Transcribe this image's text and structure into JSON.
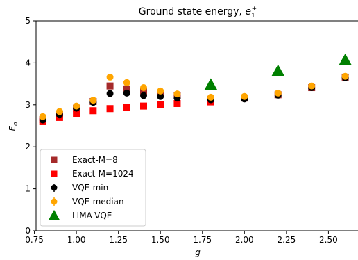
{
  "chart_data": {
    "type": "scatter",
    "title_prefix": "Ground state energy, ",
    "title_symbol": "e",
    "title_sub": "1",
    "title_sup": "+",
    "xlabel": "g",
    "ylabel_symbol": "E",
    "ylabel_sub": "o",
    "xlim": [
      0.76,
      2.68
    ],
    "ylim": [
      0,
      5
    ],
    "xticks": [
      "0.75",
      "1.00",
      "1.25",
      "1.50",
      "1.75",
      "2.00",
      "2.25",
      "2.50"
    ],
    "xtick_values": [
      0.75,
      1.0,
      1.25,
      1.5,
      1.75,
      2.0,
      2.25,
      2.5
    ],
    "yticks": [
      "0",
      "1",
      "2",
      "3",
      "4",
      "5"
    ],
    "ytick_values": [
      0,
      1,
      2,
      3,
      4,
      5
    ],
    "grid": false,
    "legend_position": "lower-left",
    "series": [
      {
        "name": "Exact-M=8",
        "marker": "square",
        "color": "#a52a2a",
        "x": [
          0.8,
          0.9,
          1.0,
          1.1,
          1.2,
          1.3,
          1.4,
          1.5,
          1.6,
          1.8,
          2.0,
          2.2,
          2.4,
          2.6
        ],
        "y": [
          2.65,
          2.77,
          2.92,
          3.08,
          3.45,
          3.38,
          3.33,
          3.27,
          3.22,
          3.13,
          3.16,
          3.24,
          3.41,
          3.66
        ]
      },
      {
        "name": "Exact-M=1024",
        "marker": "square",
        "color": "#ff0000",
        "x": [
          0.8,
          0.9,
          1.0,
          1.1,
          1.2,
          1.3,
          1.4,
          1.5,
          1.6,
          1.8
        ],
        "y": [
          2.6,
          2.7,
          2.79,
          2.86,
          2.91,
          2.94,
          2.97,
          3.0,
          3.03,
          3.07
        ]
      },
      {
        "name": "VQE-min",
        "marker": "circle",
        "color": "#000000",
        "x": [
          0.8,
          0.9,
          1.0,
          1.1,
          1.2,
          1.3,
          1.4,
          1.5,
          1.6,
          1.8,
          2.0,
          2.2,
          2.4,
          2.6
        ],
        "y": [
          2.64,
          2.76,
          2.92,
          3.06,
          3.27,
          3.28,
          3.22,
          3.2,
          3.16,
          3.12,
          3.14,
          3.23,
          3.41,
          3.65
        ]
      },
      {
        "name": "VQE-median",
        "marker": "circle",
        "color": "#ffa500",
        "x": [
          0.8,
          0.9,
          1.0,
          1.1,
          1.2,
          1.3,
          1.4,
          1.5,
          1.6,
          1.8,
          2.0,
          2.2,
          2.4,
          2.6
        ],
        "y": [
          2.72,
          2.84,
          2.97,
          3.11,
          3.66,
          3.53,
          3.41,
          3.33,
          3.26,
          3.18,
          3.2,
          3.28,
          3.45,
          3.68
        ]
      },
      {
        "name": "LIMA-VQE",
        "marker": "triangle",
        "color": "#008000",
        "x": [
          1.8,
          2.2,
          2.6
        ],
        "y": [
          3.48,
          3.81,
          4.07
        ]
      }
    ]
  }
}
